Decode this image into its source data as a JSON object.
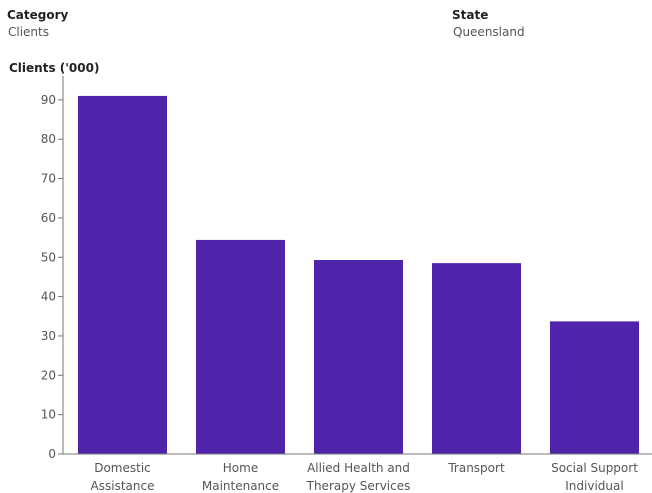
{
  "filters": {
    "category": {
      "label": "Category",
      "value": "Clients"
    },
    "state": {
      "label": "State",
      "value": "Queensland"
    }
  },
  "colors": {
    "bar": "#4f24ab",
    "axis": "#777777",
    "text": "#555555"
  },
  "chart_data": {
    "type": "bar",
    "title": "",
    "xlabel": "",
    "ylabel": "Clients ('000)",
    "ylim": [
      0,
      90
    ],
    "yticks": [
      0,
      10,
      20,
      30,
      40,
      50,
      60,
      70,
      80,
      90
    ],
    "grid": false,
    "categories": [
      [
        "Domestic",
        "Assistance"
      ],
      [
        "Home",
        "Maintenance"
      ],
      [
        "Allied Health and",
        "Therapy Services"
      ],
      [
        "Transport"
      ],
      [
        "Social Support",
        "Individual"
      ]
    ],
    "values": [
      91,
      54.4,
      49.3,
      48.5,
      33.7
    ]
  }
}
